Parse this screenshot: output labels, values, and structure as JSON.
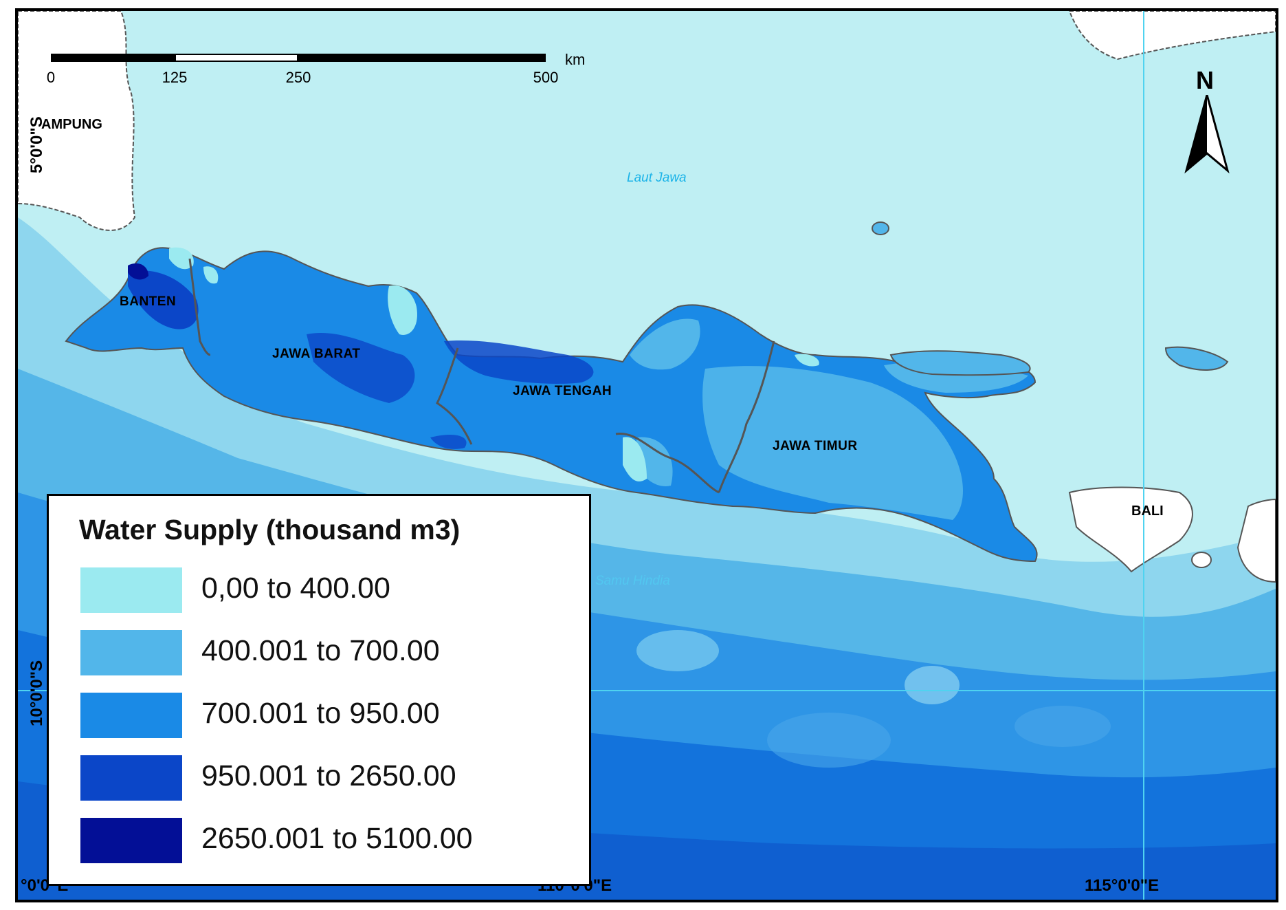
{
  "scale_bar": {
    "ticks": [
      "0",
      "125",
      "250",
      "500"
    ],
    "unit": "km"
  },
  "north_arrow": {
    "letter": "N",
    "icon": "north-arrow-icon"
  },
  "coordinates": {
    "lat_5": "5°0'0\"S",
    "lat_10": "10°0'0\"S",
    "lon_105": "°0'0\"E",
    "lon_110": "110°0'0\"E",
    "lon_115": "115°0'0\"E"
  },
  "places": {
    "lampung": "AMPUNG",
    "banten": "BANTEN",
    "jawa_barat": "JAWA BARAT",
    "jawa_tengah": "JAWA TENGAH",
    "jawa_timur": "JAWA TIMUR",
    "bali": "BALI",
    "laut_jawa": "Laut Jawa",
    "samudra": "Samu Hindia"
  },
  "legend": {
    "title": "Water Supply (thousand m3)",
    "classes": [
      {
        "label": "0,00 to 400.00",
        "color": "#9beaf0"
      },
      {
        "label": "400.001 to 700.00",
        "color": "#52b6ea"
      },
      {
        "label": "700.001 to 950.00",
        "color": "#1a8ae6"
      },
      {
        "label": "950.001 to 2650.00",
        "color": "#0b46c8"
      },
      {
        "label": "2650.001 to 5100.00",
        "color": "#030f96"
      }
    ]
  },
  "colors": {
    "sea_shallow": "#bfeff3",
    "land": "#ffffff",
    "graticule": "#4fd3f0"
  }
}
